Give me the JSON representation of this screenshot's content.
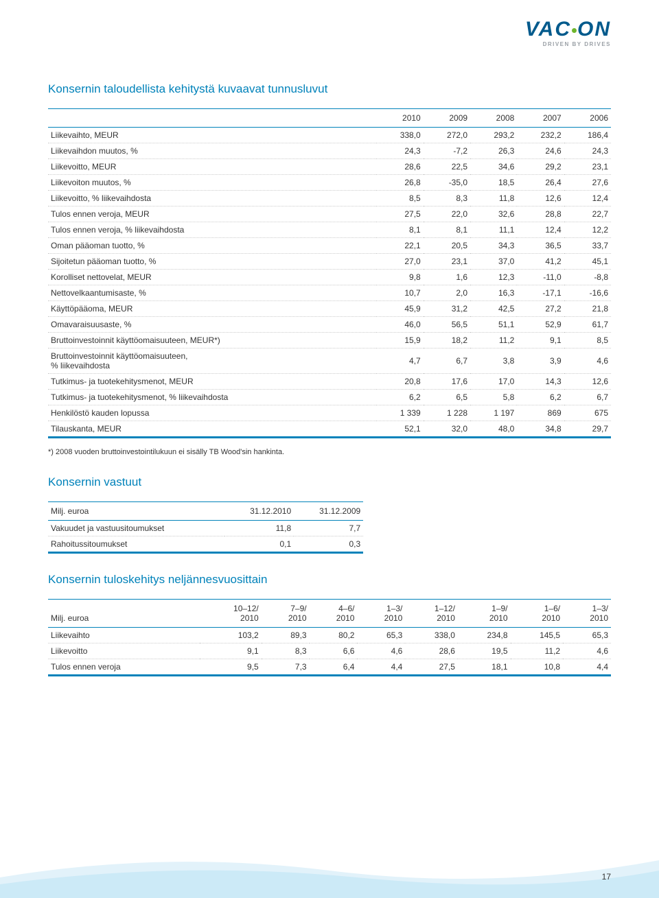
{
  "logo": {
    "text": "VACON",
    "tagline": "DRIVEN BY DRIVES"
  },
  "colors": {
    "brand_blue": "#0082ba",
    "logo_blue": "#005a8c",
    "accent_green": "#6fb62e",
    "text": "#333333",
    "dot_border": "#cccccc"
  },
  "table1": {
    "title": "Konsernin taloudellista kehitystä kuvaavat tunnusluvut",
    "headers": [
      "",
      "2010",
      "2009",
      "2008",
      "2007",
      "2006"
    ],
    "rows": [
      [
        "Liikevaihto, MEUR",
        "338,0",
        "272,0",
        "293,2",
        "232,2",
        "186,4"
      ],
      [
        "Liikevaihdon muutos, %",
        "24,3",
        "-7,2",
        "26,3",
        "24,6",
        "24,3"
      ],
      [
        "Liikevoitto, MEUR",
        "28,6",
        "22,5",
        "34,6",
        "29,2",
        "23,1"
      ],
      [
        "Liikevoiton muutos, %",
        "26,8",
        "-35,0",
        "18,5",
        "26,4",
        "27,6"
      ],
      [
        "Liikevoitto, % liikevaihdosta",
        "8,5",
        "8,3",
        "11,8",
        "12,6",
        "12,4"
      ],
      [
        "Tulos ennen veroja, MEUR",
        "27,5",
        "22,0",
        "32,6",
        "28,8",
        "22,7"
      ],
      [
        "Tulos ennen veroja, % liikevaihdosta",
        "8,1",
        "8,1",
        "11,1",
        "12,4",
        "12,2"
      ],
      [
        "Oman pääoman tuotto, %",
        "22,1",
        "20,5",
        "34,3",
        "36,5",
        "33,7"
      ],
      [
        "Sijoitetun pääoman tuotto, %",
        "27,0",
        "23,1",
        "37,0",
        "41,2",
        "45,1"
      ],
      [
        "Korolliset nettovelat, MEUR",
        "9,8",
        "1,6",
        "12,3",
        "-11,0",
        "-8,8"
      ],
      [
        "Nettovelkaantumisaste, %",
        "10,7",
        "2,0",
        "16,3",
        "-17,1",
        "-16,6"
      ],
      [
        "Käyttöpääoma, MEUR",
        "45,9",
        "31,2",
        "42,5",
        "27,2",
        "21,8"
      ],
      [
        "Omavaraisuusaste, %",
        "46,0",
        "56,5",
        "51,1",
        "52,9",
        "61,7"
      ],
      [
        "Bruttoinvestoinnit käyttöomaisuuteen, MEUR*)",
        "15,9",
        "18,2",
        "11,2",
        "9,1",
        "8,5"
      ],
      [
        "Bruttoinvestoinnit käyttöomaisuuteen,\n% liikevaihdosta",
        "4,7",
        "6,7",
        "3,8",
        "3,9",
        "4,6"
      ],
      [
        "Tutkimus- ja tuotekehitysmenot, MEUR",
        "20,8",
        "17,6",
        "17,0",
        "14,3",
        "12,6"
      ],
      [
        "Tutkimus- ja tuotekehitysmenot, % liikevaihdosta",
        "6,2",
        "6,5",
        "5,8",
        "6,2",
        "6,7"
      ],
      [
        "Henkilöstö kauden lopussa",
        "1 339",
        "1 228",
        "1 197",
        "869",
        "675"
      ],
      [
        "Tilauskanta, MEUR",
        "52,1",
        "32,0",
        "48,0",
        "34,8",
        "29,7"
      ]
    ],
    "footnote": "*) 2008 vuoden bruttoinvestointilukuun ei sisälly TB Wood'sin hankinta."
  },
  "table2": {
    "title": "Konsernin vastuut",
    "headers": [
      "Milj. euroa",
      "31.12.2010",
      "31.12.2009"
    ],
    "rows": [
      [
        "Vakuudet ja vastuusitoumukset",
        "11,8",
        "7,7"
      ],
      [
        "Rahoitussitoumukset",
        "0,1",
        "0,3"
      ]
    ]
  },
  "table3": {
    "title": "Konsernin tuloskehitys neljännesvuosittain",
    "headers_top": [
      "",
      "10–12/",
      "7–9/",
      "4–6/",
      "1–3/",
      "1–12/",
      "1–9/",
      "1–6/",
      "1–3/"
    ],
    "headers_bot": [
      "Milj. euroa",
      "2010",
      "2010",
      "2010",
      "2010",
      "2010",
      "2010",
      "2010",
      "2010"
    ],
    "rows": [
      [
        "Liikevaihto",
        "103,2",
        "89,3",
        "80,2",
        "65,3",
        "338,0",
        "234,8",
        "145,5",
        "65,3"
      ],
      [
        "Liikevoitto",
        "9,1",
        "8,3",
        "6,6",
        "4,6",
        "28,6",
        "19,5",
        "11,2",
        "4,6"
      ],
      [
        "Tulos ennen veroja",
        "9,5",
        "7,3",
        "6,4",
        "4,4",
        "27,5",
        "18,1",
        "10,8",
        "4,4"
      ]
    ]
  },
  "page_number": "17"
}
